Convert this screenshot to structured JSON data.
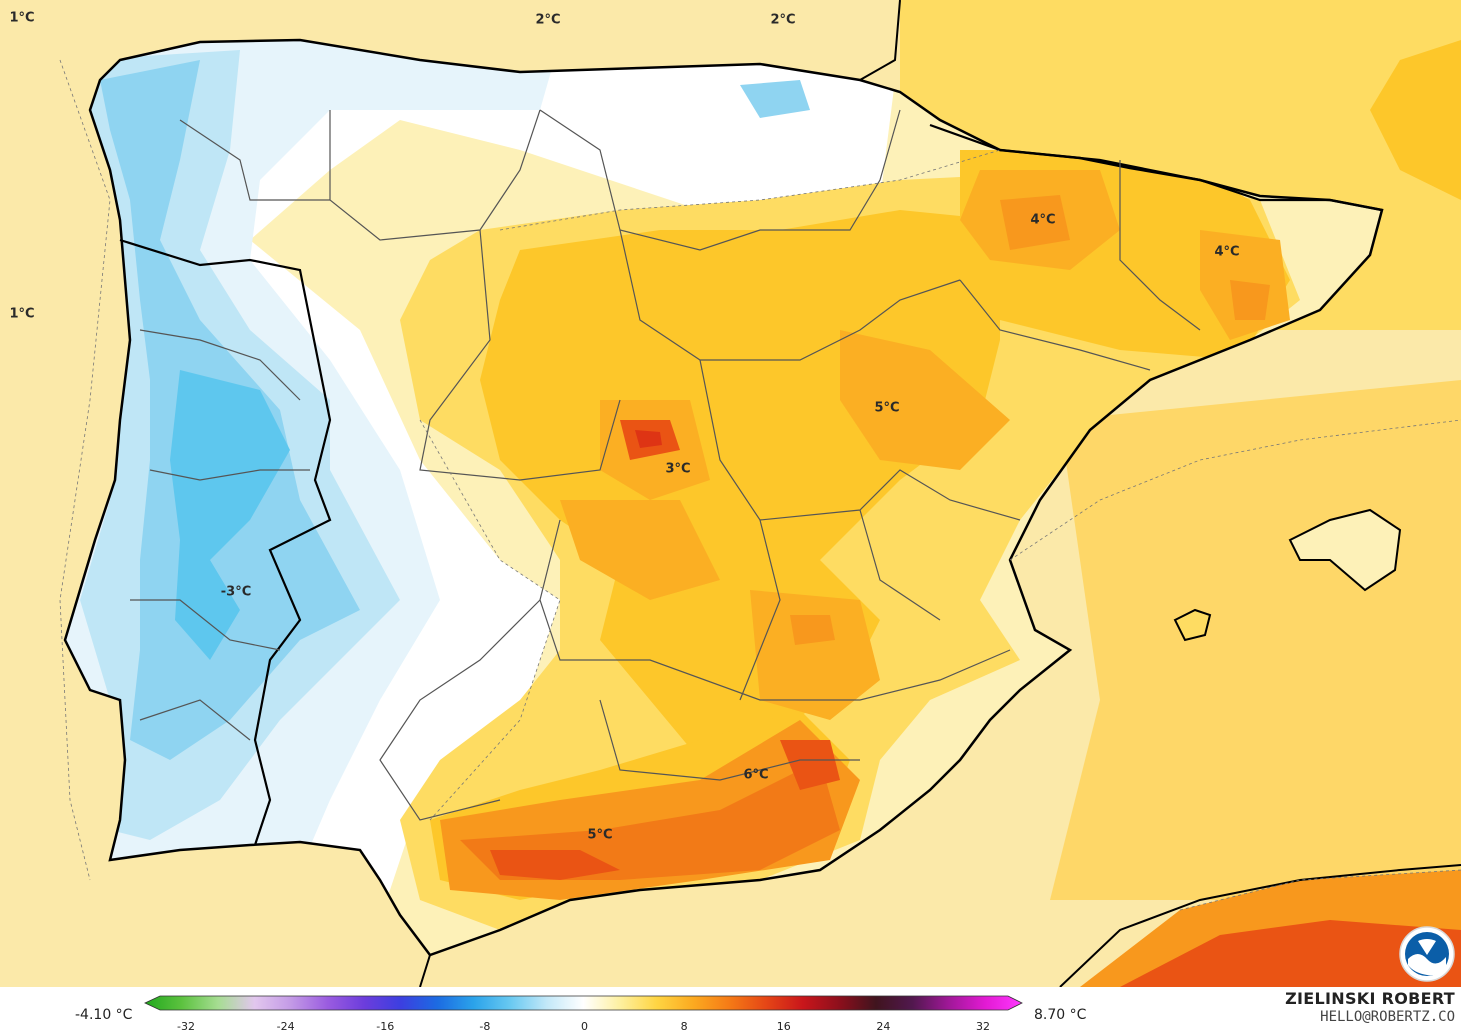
{
  "map": {
    "labels": [
      {
        "text": "1°C"
      },
      {
        "text": "2°C"
      },
      {
        "text": "2°C"
      },
      {
        "text": "1°C"
      },
      {
        "text": "4°C"
      },
      {
        "text": "4°C"
      },
      {
        "text": "5°C"
      },
      {
        "text": "3°C"
      },
      {
        "text": "-3°C"
      },
      {
        "text": "6°C"
      },
      {
        "text": "5°C"
      }
    ],
    "colors": {
      "sea_warm": "#fbe9a9",
      "light_yellow": "#fdf1b8",
      "yellow": "#fedc62",
      "gold": "#fdc72a",
      "orange_light": "#fbaf23",
      "orange": "#f8981d",
      "orange_dark": "#f27a17",
      "red_orange": "#ea5414",
      "red": "#de3414",
      "pale_blue": "#e6f4fb",
      "light_blue": "#bfe6f6",
      "blue": "#8fd4f1",
      "blue_strong": "#5ec7ee",
      "white": "#ffffff"
    }
  },
  "legend": {
    "min_label": "-4.10 °C",
    "max_label": "8.70 °C",
    "ticks": [
      "-32",
      "-24",
      "-16",
      "-8",
      "0",
      "8",
      "16",
      "24",
      "32"
    ],
    "stops": [
      "#21a81d",
      "#5cc23f",
      "#a6dd92",
      "#e2c7ee",
      "#c39ae6",
      "#9a5ce0",
      "#6c3ddc",
      "#3c3fe0",
      "#1c6be2",
      "#2ba3ea",
      "#69c9f1",
      "#c3e8f8",
      "#ffffff",
      "#fdf0a0",
      "#fed543",
      "#fcaa20",
      "#f57a16",
      "#e54616",
      "#c9161b",
      "#8d0f1c",
      "#40141e",
      "#51184e",
      "#a01898",
      "#e21ad3",
      "#ff38ff"
    ]
  },
  "credit": {
    "name": "ZIELINSKI ROBERT",
    "email": "HELLO@ROBERTZ.CO",
    "logo_text": "NOAA"
  }
}
